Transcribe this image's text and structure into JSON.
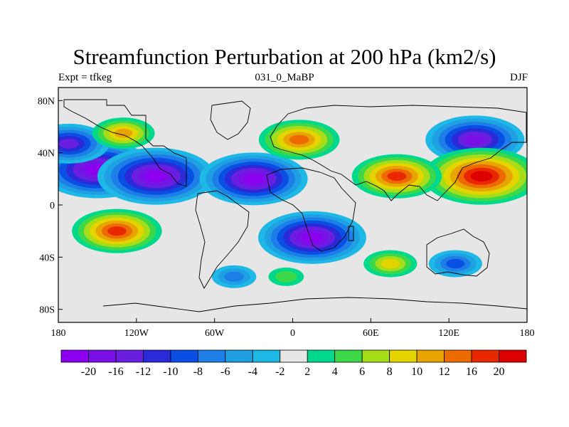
{
  "title": "Streamfunction Perturbation at 200 hPa (km2/s)",
  "subtitle_left": "Expt = tfkeg",
  "subtitle_center": "031_0_MaBP",
  "subtitle_right": "DJF",
  "y_ticks": [
    "80N",
    "40N",
    "0",
    "40S",
    "80S"
  ],
  "x_ticks": [
    "180",
    "120W",
    "60W",
    "0",
    "60E",
    "120E",
    "180"
  ],
  "colorbar": {
    "labels": [
      "-20",
      "-16",
      "-12",
      "-10",
      "-8",
      "-6",
      "-4",
      "-2",
      "2",
      "4",
      "6",
      "8",
      "10",
      "12",
      "16",
      "20"
    ],
    "colors": [
      "#8c00ef",
      "#7a10e8",
      "#6a1fe0",
      "#2a2ad8",
      "#0a4fe3",
      "#1e7ee8",
      "#1fa0e3",
      "#1eb8e6",
      "#e6e6e6",
      "#00d88c",
      "#3cd84a",
      "#a6dc18",
      "#e4d400",
      "#e8a400",
      "#ec6a00",
      "#ea2800",
      "#dc0000"
    ]
  },
  "chart_data": {
    "type": "heatmap",
    "x_range": [
      -180,
      180
    ],
    "y_range": [
      -90,
      90
    ],
    "features": [
      {
        "sign": "neg",
        "lon": -150,
        "lat": 27,
        "peak": -22
      },
      {
        "sign": "neg",
        "lon": -105,
        "lat": 22,
        "peak": -22
      },
      {
        "sign": "neg",
        "lon": -30,
        "lat": 20,
        "peak": -20
      },
      {
        "sign": "neg",
        "lon": 15,
        "lat": -25,
        "peak": -20
      },
      {
        "sign": "neg",
        "lon": 140,
        "lat": 50,
        "peak": -18
      },
      {
        "sign": "neg",
        "lon": -172,
        "lat": 47,
        "peak": -14
      },
      {
        "sign": "neg",
        "lon": 125,
        "lat": -45,
        "peak": -8
      },
      {
        "sign": "neg",
        "lon": -45,
        "lat": -55,
        "peak": -6
      },
      {
        "sign": "pos",
        "lon": -135,
        "lat": -20,
        "peak": 16
      },
      {
        "sign": "pos",
        "lon": 145,
        "lat": 22,
        "peak": 22
      },
      {
        "sign": "pos",
        "lon": 80,
        "lat": 22,
        "peak": 16
      },
      {
        "sign": "pos",
        "lon": 5,
        "lat": 50,
        "peak": 14
      },
      {
        "sign": "pos",
        "lon": -130,
        "lat": 55,
        "peak": 10
      },
      {
        "sign": "pos",
        "lon": 75,
        "lat": -45,
        "peak": 8
      },
      {
        "sign": "pos",
        "lon": -5,
        "lat": -55,
        "peak": 4
      }
    ]
  }
}
